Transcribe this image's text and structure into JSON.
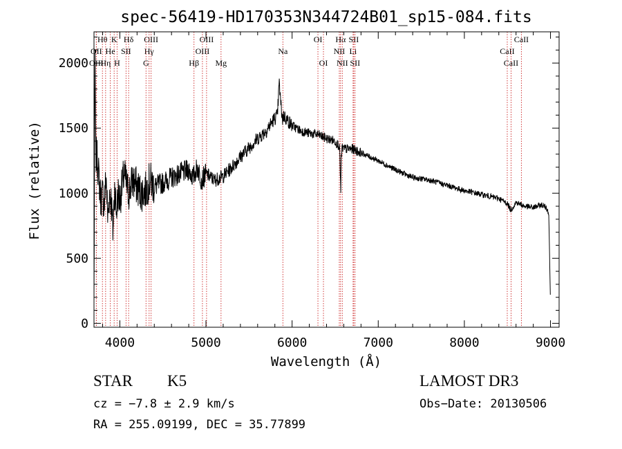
{
  "chart_data": {
    "type": "line",
    "title": "spec-56419-HD170353N344724B01_sp15-084.fits",
    "xlabel": "Wavelength (Å)",
    "ylabel": "Flux (relative)",
    "xlim": [
      3700,
      9100
    ],
    "ylim": [
      -30,
      2240
    ],
    "xticks": [
      4000,
      5000,
      6000,
      7000,
      8000,
      9000
    ],
    "xtick_labels": [
      "4000",
      "5000",
      "6000",
      "7000",
      "8000",
      "9000"
    ],
    "yticks": [
      0,
      500,
      1000,
      1500,
      2000
    ],
    "ytick_labels": [
      "0",
      "500",
      "1000",
      "1500",
      "2000"
    ],
    "series": [
      {
        "name": "flux",
        "x": [
          3700,
          3705,
          3712,
          3720,
          3740,
          3760,
          3780,
          3800,
          3820,
          3840,
          3860,
          3880,
          3900,
          3920,
          3940,
          3960,
          3980,
          4000,
          4050,
          4100,
          4150,
          4200,
          4250,
          4300,
          4350,
          4400,
          4500,
          4600,
          4700,
          4800,
          4850,
          4900,
          4950,
          5000,
          5100,
          5200,
          5300,
          5400,
          5500,
          5600,
          5700,
          5780,
          5830,
          5850,
          5870,
          5890,
          5900,
          5920,
          6000,
          6100,
          6200,
          6300,
          6400,
          6500,
          6550,
          6560,
          6565,
          6570,
          6580,
          6600,
          6700,
          6800,
          7000,
          7200,
          7400,
          7600,
          7800,
          8000,
          8200,
          8400,
          8500,
          8540,
          8600,
          8700,
          8800,
          8900,
          8950,
          8980,
          8990,
          9000
        ],
        "y": [
          150,
          1050,
          2050,
          1300,
          1250,
          1100,
          950,
          1000,
          900,
          1150,
          800,
          1000,
          950,
          700,
          1050,
          850,
          1000,
          950,
          1150,
          1000,
          1100,
          1050,
          1000,
          1020,
          1100,
          1050,
          1080,
          1120,
          1150,
          1180,
          1120,
          1200,
          1100,
          1150,
          1100,
          1130,
          1200,
          1280,
          1350,
          1420,
          1480,
          1560,
          1600,
          1850,
          1680,
          1560,
          1600,
          1580,
          1520,
          1480,
          1460,
          1450,
          1420,
          1400,
          1360,
          1150,
          1000,
          1250,
          1350,
          1340,
          1340,
          1310,
          1250,
          1180,
          1120,
          1100,
          1060,
          1020,
          990,
          960,
          920,
          870,
          930,
          900,
          890,
          910,
          890,
          850,
          500,
          150
        ]
      }
    ],
    "spectral_lines": [
      {
        "name": "Hθ",
        "wavelength": 3798,
        "row": 1
      },
      {
        "name": "K",
        "wavelength": 3934,
        "row": 1
      },
      {
        "name": "Hδ",
        "wavelength": 4102,
        "row": 1
      },
      {
        "name": "OIII",
        "wavelength": 4363,
        "row": 1
      },
      {
        "name": "OIII",
        "wavelength": 5007,
        "row": 1
      },
      {
        "name": "OI",
        "wavelength": 6300,
        "row": 1
      },
      {
        "name": "Hα",
        "wavelength": 6563,
        "row": 1
      },
      {
        "name": "SII",
        "wavelength": 6716,
        "row": 1
      },
      {
        "name": "CaII",
        "wavelength": 8662,
        "row": 1
      },
      {
        "name": "OII",
        "wavelength": 3727,
        "row": 2
      },
      {
        "name": "He",
        "wavelength": 3889,
        "row": 2
      },
      {
        "name": "SII",
        "wavelength": 4072,
        "row": 2
      },
      {
        "name": "Hγ",
        "wavelength": 4340,
        "row": 2
      },
      {
        "name": "OIII",
        "wavelength": 4959,
        "row": 2
      },
      {
        "name": "Na",
        "wavelength": 5893,
        "row": 2
      },
      {
        "name": "NII",
        "wavelength": 6548,
        "row": 2
      },
      {
        "name": "Li",
        "wavelength": 6708,
        "row": 2
      },
      {
        "name": "CaII",
        "wavelength": 8498,
        "row": 2
      },
      {
        "name": "OIII",
        "wavelength": 3727,
        "row": 3
      },
      {
        "name": "Hη",
        "wavelength": 3835,
        "row": 3
      },
      {
        "name": "H",
        "wavelength": 3968,
        "row": 3
      },
      {
        "name": "G",
        "wavelength": 4304,
        "row": 3
      },
      {
        "name": "Hβ",
        "wavelength": 4861,
        "row": 3
      },
      {
        "name": "Mg",
        "wavelength": 5175,
        "row": 3
      },
      {
        "name": "OI",
        "wavelength": 6364,
        "row": 3
      },
      {
        "name": "NII",
        "wavelength": 6583,
        "row": 3
      },
      {
        "name": "SII",
        "wavelength": 6731,
        "row": 3
      },
      {
        "name": "CaII",
        "wavelength": 8542,
        "row": 3
      }
    ]
  },
  "info": {
    "object_class": "STAR",
    "subclass": "K5",
    "survey": "LAMOST DR3",
    "cz": "cz = −7.8 ± 2.9 km/s",
    "obs_date": "Obs−Date: 20130506",
    "coords": "RA = 255.09199, DEC =  35.77899"
  }
}
